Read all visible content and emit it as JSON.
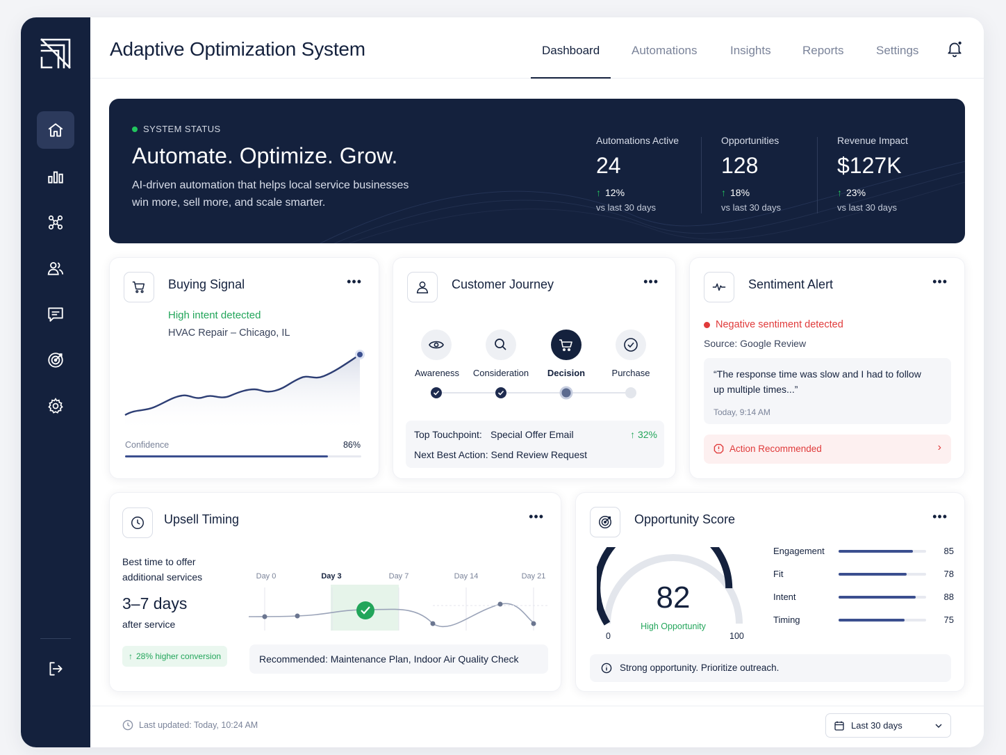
{
  "app": {
    "title": "Adaptive Optimization System"
  },
  "nav": {
    "tabs": [
      {
        "label": "Dashboard",
        "active": true
      },
      {
        "label": "Automations"
      },
      {
        "label": "Insights"
      },
      {
        "label": "Reports"
      },
      {
        "label": "Settings"
      }
    ]
  },
  "sidebar": {
    "items": [
      {
        "icon": "home-icon",
        "active": true
      },
      {
        "icon": "bar-chart-icon"
      },
      {
        "icon": "network-icon"
      },
      {
        "icon": "users-icon"
      },
      {
        "icon": "message-icon"
      },
      {
        "icon": "target-icon"
      },
      {
        "icon": "gear-icon"
      }
    ],
    "bottom_icon": "logout-icon"
  },
  "hero": {
    "status": "SYSTEM STATUS",
    "headline": "Automate. Optimize. Grow.",
    "subline": "AI-driven automation that helps local service businesses win more, sell more, and scale smarter.",
    "kpis": [
      {
        "label": "Automations Active",
        "value": "24",
        "change": "12%",
        "period": "vs last 30 days"
      },
      {
        "label": "Opportunities",
        "value": "128",
        "change": "18%",
        "period": "vs last 30 days"
      },
      {
        "label": "Revenue Impact",
        "value": "$127K",
        "change": "23%",
        "period": "vs last 30 days"
      }
    ],
    "colors": {
      "background": "#14213d",
      "status_dot": "#22c55e"
    }
  },
  "buying_signal": {
    "title": "Buying Signal",
    "intent": "High intent detected",
    "location": "HVAC Repair – Chicago, IL",
    "confidence_label": "Confidence",
    "confidence_value": "86%",
    "confidence_fraction": 0.86
  },
  "customer_journey": {
    "title": "Customer Journey",
    "stages": [
      {
        "label": "Awareness",
        "icon": "eye-icon",
        "state": "done"
      },
      {
        "label": "Consideration",
        "icon": "search-icon",
        "state": "done"
      },
      {
        "label": "Decision",
        "icon": "cart-icon",
        "state": "current"
      },
      {
        "label": "Purchase",
        "icon": "check-circle-icon",
        "state": "pending"
      }
    ],
    "touchpoint_label": "Top Touchpoint:",
    "touchpoint_value": "Special Offer Email",
    "touchpoint_change": "32%",
    "next_action": "Next Best Action: Send Review Request"
  },
  "sentiment": {
    "title": "Sentiment Alert",
    "alert": "Negative sentiment detected",
    "source": "Source: Google Review",
    "quote": "“The response time was slow and I had to follow up multiple times...”",
    "time": "Today, 9:14 AM",
    "action": "Action Recommended"
  },
  "upsell": {
    "title": "Upsell Timing",
    "desc": "Best time to offer additional services",
    "value": "3–7 days",
    "after": "after service",
    "badge": "28% higher conversion",
    "days": [
      "Day 0",
      "Day 3",
      "Day 7",
      "Day 14",
      "Day 21"
    ],
    "recommendation": "Recommended: Maintenance Plan, Indoor Air Quality Check"
  },
  "opportunity": {
    "title": "Opportunity Score",
    "score": "82",
    "score_label": "High Opportunity",
    "min": "0",
    "max": "100",
    "score_fraction": 0.82,
    "metrics": [
      {
        "label": "Engagement",
        "value": "85",
        "fraction": 0.85
      },
      {
        "label": "Fit",
        "value": "78",
        "fraction": 0.78
      },
      {
        "label": "Intent",
        "value": "88",
        "fraction": 0.88
      },
      {
        "label": "Timing",
        "value": "75",
        "fraction": 0.75
      }
    ],
    "note": "Strong opportunity. Prioritize outreach."
  },
  "footer": {
    "updated": "Last updated: Today, 10:24 AM",
    "range": "Last 30 days"
  }
}
